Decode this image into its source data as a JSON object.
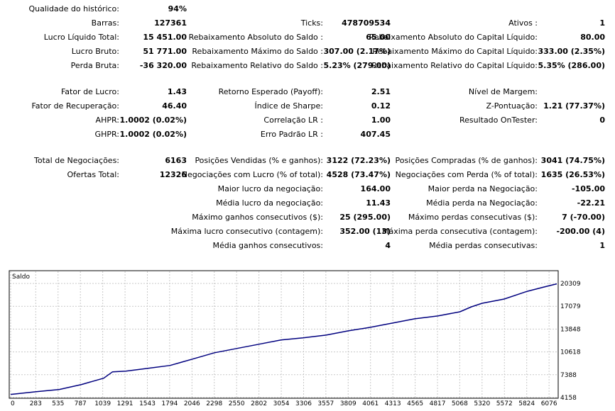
{
  "stats": [
    {
      "label": "Qualidade do histórico:",
      "value": "94%"
    },
    {
      "label": "Barras:",
      "value": "127361"
    },
    {
      "label": "Lucro Líquido Total:",
      "value": "15 451.00"
    },
    {
      "label": "Lucro Bruto:",
      "value": "51 771.00"
    },
    {
      "label": "Perda Bruta:",
      "value": "-36 320.00"
    },
    {
      "label": "Ticks:",
      "value": "478709534"
    },
    {
      "label": "Rebaixamento Absoluto do Saldo :",
      "value": "65.00"
    },
    {
      "label": "Rebaixamento Máximo do Saldo :",
      "value": "307.00 (2.17%)"
    },
    {
      "label": "Rebaixamento Relativo do Saldo :",
      "value": "5.23% (279.00)"
    },
    {
      "label": "Ativos :",
      "value": "1"
    },
    {
      "label": "Rebaixamento Absoluto do Capital Líquido:",
      "value": "80.00"
    },
    {
      "label": "Rebaixamento Máximo do Capital Líquido:",
      "value": "333.00 (2.35%)"
    },
    {
      "label": "Rebaixamento Relativo do Capital Líquido:",
      "value": "5.35% (286.00)"
    },
    {
      "label": "Fator de Lucro:",
      "value": "1.43"
    },
    {
      "label": "Fator de Recuperação:",
      "value": "46.40"
    },
    {
      "label": "AHPR:",
      "value": "1.0002 (0.02%)"
    },
    {
      "label": "GHPR:",
      "value": "1.0002 (0.02%)"
    },
    {
      "label": "Retorno Esperado (Payoff):",
      "value": "2.51"
    },
    {
      "label": "Índice de Sharpe:",
      "value": "0.12"
    },
    {
      "label": "Correlação LR :",
      "value": "1.00"
    },
    {
      "label": "Erro Padrão LR :",
      "value": "407.45"
    },
    {
      "label": "Nível de Margem:",
      "value": ""
    },
    {
      "label": "Z-Pontuação:",
      "value": "1.21 (77.37%)"
    },
    {
      "label": "Resultado OnTester:",
      "value": "0"
    },
    {
      "label": "Total de Negociações:",
      "value": "6163"
    },
    {
      "label": "Ofertas Total:",
      "value": "12326"
    },
    {
      "label": "Posições Vendidas (% e ganhos):",
      "value": "3122 (72.23%)"
    },
    {
      "label": "Negociações com Lucro (% of total):",
      "value": "4528 (73.47%)"
    },
    {
      "label": "Maior lucro da negociação:",
      "value": "164.00"
    },
    {
      "label": "Média lucro da negociação:",
      "value": "11.43"
    },
    {
      "label": "Máximo ganhos consecutivos ($):",
      "value": "25 (295.00)"
    },
    {
      "label": "Máxima lucro consecutivo (contagem):",
      "value": "352.00 (13)"
    },
    {
      "label": "Média ganhos consecutivos:",
      "value": "4"
    },
    {
      "label": "Posições Compradas (% de ganhos):",
      "value": "3041 (74.75%)"
    },
    {
      "label": "Negociações com Perda (% of total):",
      "value": "1635 (26.53%)"
    },
    {
      "label": "Maior perda na Negociação:",
      "value": "-105.00"
    },
    {
      "label": "Média perda na Negociação:",
      "value": "-22.21"
    },
    {
      "label": "Máximo perdas consecutivas ($):",
      "value": "7 (-70.00)"
    },
    {
      "label": "Máxima perda consecutiva (contagem):",
      "value": "-200.00 (4)"
    },
    {
      "label": "Média perdas consecutivas:",
      "value": "1"
    }
  ],
  "chart_data": {
    "type": "line",
    "title": "Saldo",
    "x_ticks": [
      0,
      283,
      535,
      787,
      1039,
      1291,
      1543,
      1794,
      2046,
      2298,
      2550,
      2802,
      3054,
      3306,
      3557,
      3809,
      4061,
      4313,
      4565,
      4817,
      5068,
      5320,
      5572,
      5824,
      6076
    ],
    "y_ticks": [
      4158,
      7388,
      10618,
      13848,
      17079,
      20309
    ],
    "xlim": [
      0,
      6163
    ],
    "ylim": [
      4158,
      20309
    ],
    "grid": true,
    "line_color": "#00007f",
    "series": [
      {
        "x": [
          0,
          300,
          550,
          800,
          1050,
          1150,
          1300,
          1550,
          1800,
          2050,
          2300,
          2550,
          2800,
          3050,
          3300,
          3560,
          3810,
          4060,
          4310,
          4560,
          4820,
          5070,
          5200,
          5320,
          5570,
          5830,
          6080,
          6163
        ],
        "values": [
          4600,
          5000,
          5300,
          6000,
          6900,
          7800,
          7900,
          8300,
          8700,
          9600,
          10500,
          11100,
          11700,
          12300,
          12600,
          13000,
          13600,
          14100,
          14700,
          15300,
          15700,
          16300,
          17000,
          17500,
          18100,
          19200,
          20000,
          20250
        ]
      }
    ]
  }
}
